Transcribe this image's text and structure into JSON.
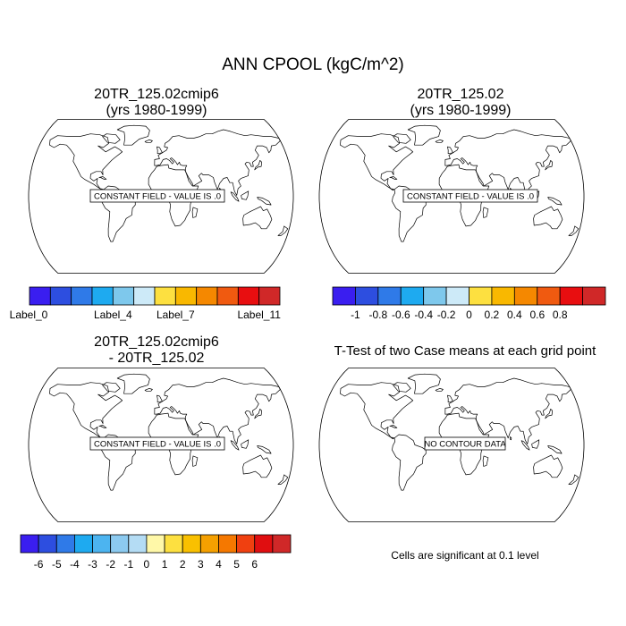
{
  "figure": {
    "title": "ANN CPOOL (kgC/m^2)"
  },
  "panels": [
    {
      "id": "case1",
      "title_line1": "20TR_125.02cmip6",
      "title_line2": "(yrs 1980-1999)",
      "annotation": "CONSTANT FIELD - VALUE IS .0"
    },
    {
      "id": "case2",
      "title_line1": "20TR_125.02",
      "title_line2": "(yrs 1980-1999)",
      "annotation": "CONSTANT FIELD - VALUE IS .0"
    },
    {
      "id": "diff",
      "title_line1": "20TR_125.02cmip6",
      "title_line2": "- 20TR_125.02",
      "annotation": "CONSTANT FIELD - VALUE IS .0"
    },
    {
      "id": "ttest",
      "title_line1": "T-Test of two Case means at each grid point",
      "title_line2": "",
      "annotation": "NO CONTOUR DATA"
    }
  ],
  "colorbars": {
    "case1": {
      "colors": [
        "#3a1ef0",
        "#2d4ee0",
        "#2f7ae8",
        "#1eaaf0",
        "#7ec8ec",
        "#cdeaf8",
        "#fde040",
        "#f9b800",
        "#f58800",
        "#f05a10",
        "#e80e10",
        "#d02828"
      ],
      "labels": [
        {
          "text": "Label_0",
          "boundary": 0
        },
        {
          "text": "Label_4",
          "boundary": 4
        },
        {
          "text": "Label_7",
          "boundary": 7
        },
        {
          "text": "Label_11",
          "boundary": 11
        }
      ]
    },
    "case2": {
      "colors": [
        "#3a1ef0",
        "#2d4ee0",
        "#2f7ae8",
        "#1eaaf0",
        "#7ec8ec",
        "#cdeaf8",
        "#fde040",
        "#f9b800",
        "#f58800",
        "#f05a10",
        "#e80e10",
        "#d02828"
      ],
      "labels": [
        {
          "text": "-1",
          "boundary": 1
        },
        {
          "text": "-0.8",
          "boundary": 2
        },
        {
          "text": "-0.6",
          "boundary": 3
        },
        {
          "text": "-0.4",
          "boundary": 4
        },
        {
          "text": "-0.2",
          "boundary": 5
        },
        {
          "text": "0",
          "boundary": 6
        },
        {
          "text": "0.2",
          "boundary": 7
        },
        {
          "text": "0.4",
          "boundary": 8
        },
        {
          "text": "0.6",
          "boundary": 9
        },
        {
          "text": "0.8",
          "boundary": 10
        }
      ]
    },
    "diff": {
      "colors": [
        "#3a1ef0",
        "#2d4ee0",
        "#2f7ae8",
        "#1eaaf0",
        "#4cb4f0",
        "#8ccaf0",
        "#b4dcf4",
        "#fff8a8",
        "#fde040",
        "#f9c000",
        "#f5a000",
        "#f57800",
        "#f04010",
        "#e00e10",
        "#d02828"
      ],
      "labels": [
        {
          "text": "-6",
          "boundary": 1
        },
        {
          "text": "-5",
          "boundary": 2
        },
        {
          "text": "-4",
          "boundary": 3
        },
        {
          "text": "-3",
          "boundary": 4
        },
        {
          "text": "-2",
          "boundary": 5
        },
        {
          "text": "-1",
          "boundary": 6
        },
        {
          "text": "0",
          "boundary": 7
        },
        {
          "text": "1",
          "boundary": 8
        },
        {
          "text": "2",
          "boundary": 9
        },
        {
          "text": "3",
          "boundary": 10
        },
        {
          "text": "4",
          "boundary": 11
        },
        {
          "text": "5",
          "boundary": 12
        },
        {
          "text": "6",
          "boundary": 13
        }
      ]
    }
  },
  "footnote": "Cells are significant at 0.1 level"
}
